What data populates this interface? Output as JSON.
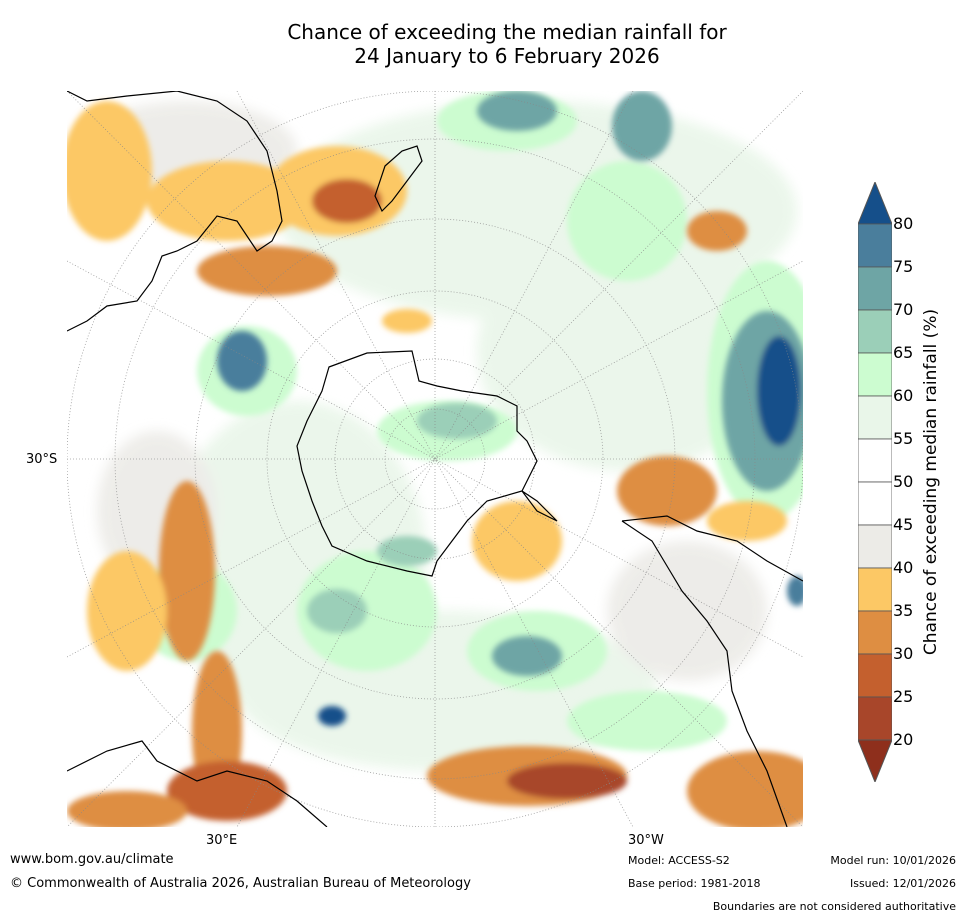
{
  "title_line1": "Chance of exceeding the median rainfall for",
  "title_line2": "24 January to 6 February 2026",
  "axis_labels": {
    "lat": "30°S",
    "lon_east": "30°E",
    "lon_west": "30°W"
  },
  "legend": {
    "label": "Chance of exceeding median rainfall (%)",
    "ticks": [
      "20",
      "25",
      "30",
      "35",
      "40",
      "45",
      "50",
      "55",
      "60",
      "65",
      "70",
      "75",
      "80"
    ],
    "colors": {
      "below_20": "#8e2f1c",
      "20_25": "#a8462a",
      "25_30": "#c4602e",
      "30_35": "#de8e42",
      "35_40": "#fcc865",
      "40_45": "#ecebe7",
      "45_50": "#ffffff",
      "50_55": "#ffffff",
      "55_60": "#e9f6e9",
      "60_65": "#ccfcd0",
      "65_70": "#9bcfb8",
      "70_75": "#6ea5a5",
      "75_80": "#4a7e9c",
      "above_80": "#154f8a"
    }
  },
  "footer": {
    "website": "www.bom.gov.au/climate",
    "copyright": "© Commonwealth of Australia 2026, Australian Bureau of Meteorology",
    "model": "Model: ACCESS-S2",
    "base_period": "Base period: 1981-2018",
    "model_run": "Model run: 10/01/2026",
    "issued": "Issued: 12/01/2026",
    "disclaimer": "Boundaries are not considered authoritative"
  }
}
